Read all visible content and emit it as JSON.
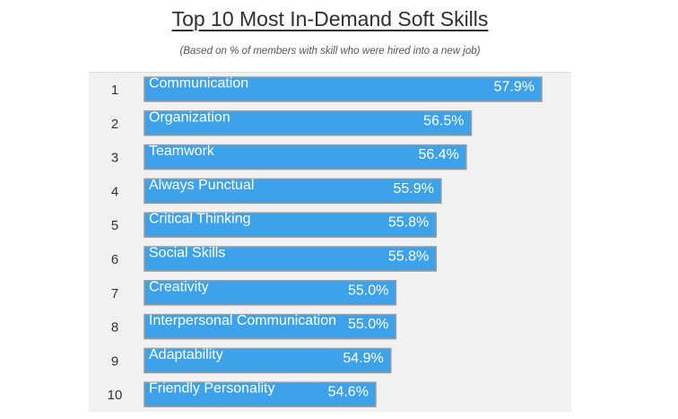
{
  "chart_data": {
    "type": "bar",
    "orientation": "horizontal",
    "title": "Top 10 Most In-Demand Soft Skills",
    "subtitle": "(Based on % of members with skill who were hired into a new job)",
    "ranks": [
      "1",
      "2",
      "3",
      "4",
      "5",
      "6",
      "7",
      "8",
      "9",
      "10"
    ],
    "categories": [
      "Communication",
      "Organization",
      "Teamwork",
      "Always Punctual",
      "Critical Thinking",
      "Social Skills",
      "Creativity",
      "Interpersonal Communication",
      "Adaptability",
      "Friendly Personality"
    ],
    "values": [
      57.9,
      56.5,
      56.4,
      55.9,
      55.8,
      55.8,
      55.0,
      55.0,
      54.9,
      54.6
    ],
    "value_labels": [
      "57.9%",
      "56.5%",
      "56.4%",
      "55.9%",
      "55.8%",
      "55.8%",
      "55.0%",
      "55.0%",
      "54.9%",
      "54.6%"
    ],
    "bar_color": "#3ea2ea",
    "bar_border_color": "#9a9a9a",
    "grid": false,
    "legend": "none"
  }
}
